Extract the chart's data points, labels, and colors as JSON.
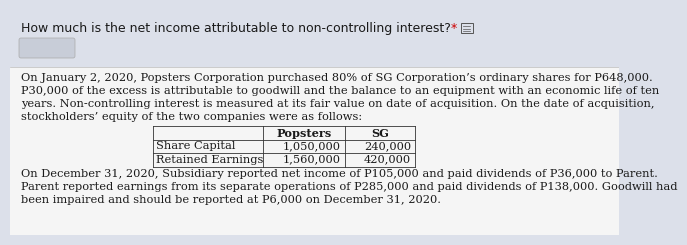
{
  "question": "How much is the net income attributable to non-controlling interest?",
  "asterisk": "*",
  "bg_color_top": "#dce0ea",
  "bg_color_bottom": "#f5f5f5",
  "para1_lines": [
    "On January 2, 2020, Popsters Corporation purchased 80% of SG Corporation’s ordinary shares for P648,000.",
    "P30,000 of the excess is attributable to goodwill and the balance to an equipment with an economic life of ten",
    "years. Non-controlling interest is measured at its fair value on date of acquisition. On the date of acquisition,",
    "stockholders’ equity of the two companies were as follows:"
  ],
  "table_headers": [
    "",
    "Popsters",
    "SG"
  ],
  "table_rows": [
    [
      "Share Capital",
      "1,050,000",
      "240,000"
    ],
    [
      "Retained Earnings",
      "1,560,000",
      "420,000"
    ]
  ],
  "para2_lines": [
    "On December 31, 2020, Subsidiary reported net income of P105,000 and paid dividends of P36,000 to Parent.",
    "Parent reported earnings from its separate operations of P285,000 and paid dividends of P138,000. Goodwill had",
    "been impaired and should be reported at P6,000 on December 31, 2020."
  ],
  "font_size_question": 9.0,
  "font_size_body": 8.2,
  "text_color": "#1a1a1a",
  "asterisk_color": "#cc0000",
  "table_border_color": "#333333",
  "input_box_color": "#c8cdd8",
  "input_box_border": "#aaaaaa"
}
